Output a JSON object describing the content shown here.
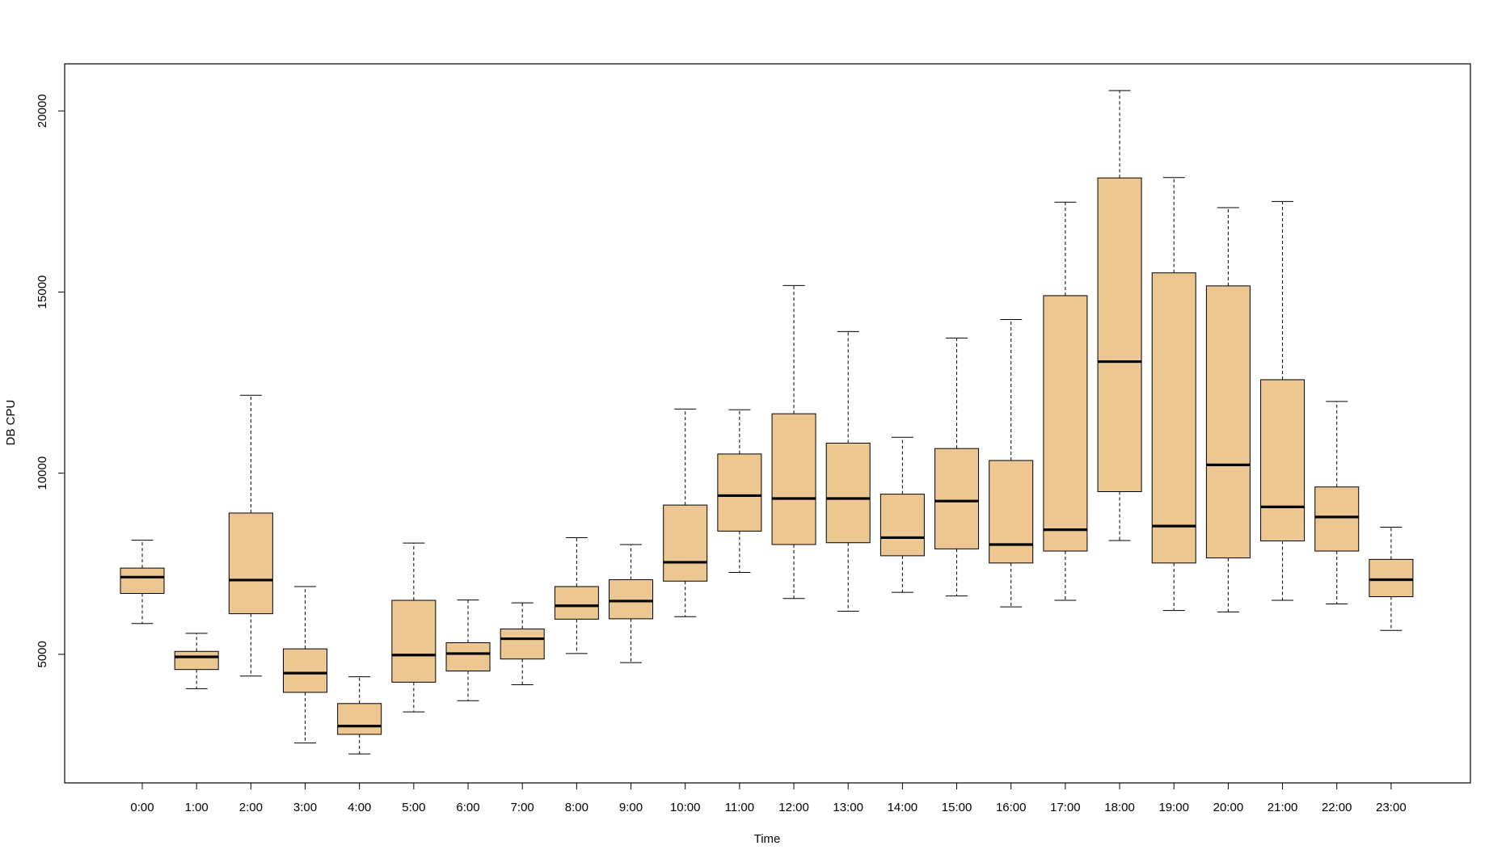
{
  "chart_data": {
    "type": "boxplot",
    "title": "",
    "xlabel": "Time",
    "ylabel": "DB CPU",
    "ylim": [
      1450,
      21300
    ],
    "yticks": [
      5000,
      10000,
      15000,
      20000
    ],
    "box_fill": "#EDC791",
    "categories": [
      "0:00",
      "1:00",
      "2:00",
      "3:00",
      "4:00",
      "5:00",
      "6:00",
      "7:00",
      "8:00",
      "9:00",
      "10:00",
      "11:00",
      "12:00",
      "13:00",
      "14:00",
      "15:00",
      "16:00",
      "17:00",
      "18:00",
      "19:00",
      "20:00",
      "21:00",
      "22:00",
      "23:00"
    ],
    "boxes": [
      {
        "label": "0:00",
        "min": 5850,
        "q1": 6680,
        "median": 7130,
        "q3": 7380,
        "max": 8150
      },
      {
        "label": "1:00",
        "min": 4050,
        "q1": 4580,
        "median": 4930,
        "q3": 5080,
        "max": 5580
      },
      {
        "label": "2:00",
        "min": 4400,
        "q1": 6120,
        "median": 7050,
        "q3": 8900,
        "max": 12150
      },
      {
        "label": "3:00",
        "min": 2550,
        "q1": 3950,
        "median": 4480,
        "q3": 5150,
        "max": 6870
      },
      {
        "label": "4:00",
        "min": 2250,
        "q1": 2790,
        "median": 3020,
        "q3": 3640,
        "max": 4380
      },
      {
        "label": "5:00",
        "min": 3410,
        "q1": 4230,
        "median": 4980,
        "q3": 6490,
        "max": 8070
      },
      {
        "label": "6:00",
        "min": 3720,
        "q1": 4540,
        "median": 5020,
        "q3": 5320,
        "max": 6500
      },
      {
        "label": "7:00",
        "min": 4160,
        "q1": 4870,
        "median": 5430,
        "q3": 5700,
        "max": 6420
      },
      {
        "label": "8:00",
        "min": 5020,
        "q1": 5970,
        "median": 6340,
        "q3": 6870,
        "max": 8220
      },
      {
        "label": "9:00",
        "min": 4770,
        "q1": 5980,
        "median": 6470,
        "q3": 7060,
        "max": 8030
      },
      {
        "label": "10:00",
        "min": 6040,
        "q1": 7020,
        "median": 7540,
        "q3": 9120,
        "max": 11770
      },
      {
        "label": "11:00",
        "min": 7260,
        "q1": 8400,
        "median": 9380,
        "q3": 10530,
        "max": 11750
      },
      {
        "label": "12:00",
        "min": 6540,
        "q1": 8030,
        "median": 9300,
        "q3": 11640,
        "max": 15180
      },
      {
        "label": "13:00",
        "min": 6190,
        "q1": 8080,
        "median": 9300,
        "q3": 10830,
        "max": 13910
      },
      {
        "label": "14:00",
        "min": 6710,
        "q1": 7720,
        "median": 8220,
        "q3": 9420,
        "max": 10990
      },
      {
        "label": "15:00",
        "min": 6610,
        "q1": 7910,
        "median": 9230,
        "q3": 10680,
        "max": 13730
      },
      {
        "label": "16:00",
        "min": 6310,
        "q1": 7520,
        "median": 8030,
        "q3": 10350,
        "max": 14240
      },
      {
        "label": "17:00",
        "min": 6490,
        "q1": 7850,
        "median": 8440,
        "q3": 14900,
        "max": 17480
      },
      {
        "label": "18:00",
        "min": 8140,
        "q1": 9490,
        "median": 13080,
        "q3": 18150,
        "max": 20560
      },
      {
        "label": "19:00",
        "min": 6210,
        "q1": 7520,
        "median": 8540,
        "q3": 15530,
        "max": 18160
      },
      {
        "label": "20:00",
        "min": 6170,
        "q1": 7660,
        "median": 10230,
        "q3": 15170,
        "max": 17330
      },
      {
        "label": "21:00",
        "min": 6490,
        "q1": 8130,
        "median": 9070,
        "q3": 12580,
        "max": 17500
      },
      {
        "label": "22:00",
        "min": 6390,
        "q1": 7850,
        "median": 8790,
        "q3": 9620,
        "max": 11980
      },
      {
        "label": "23:00",
        "min": 5660,
        "q1": 6590,
        "median": 7060,
        "q3": 7620,
        "max": 8510
      }
    ]
  }
}
